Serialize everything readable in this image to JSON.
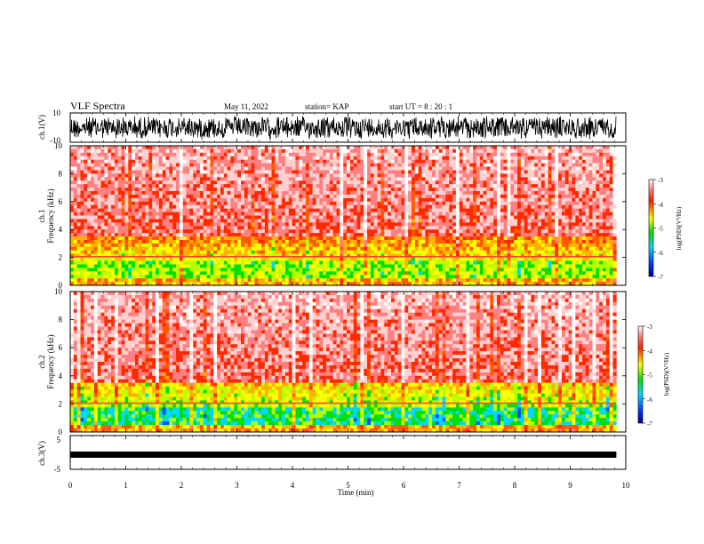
{
  "header": {
    "title": "VLF Spectra",
    "date": "May 11, 2022",
    "station": "station= KAP",
    "start": "start  UT =   8  : 20 : 1"
  },
  "chart_data": [
    {
      "type": "line",
      "name_label": "ch.1(V)",
      "ylim": [
        -10,
        10
      ],
      "yticks": [
        "10",
        "-10"
      ],
      "description": "ch.1 waveform amplitude"
    },
    {
      "type": "heatmap",
      "ylabel_top": "ch.1",
      "ylabel": "Frequency (kHz)",
      "ylim": [
        0,
        10
      ],
      "yticks": [
        "0",
        "2",
        "4",
        "6",
        "8",
        "10"
      ],
      "colorbar": {
        "label": "log(PSD)(V²/Hz)",
        "ticks": [
          "-3",
          "-4",
          "-5",
          "-6",
          "-7"
        ],
        "range": [
          -7,
          -3
        ]
      }
    },
    {
      "type": "heatmap",
      "ylabel_top": "ch.2",
      "ylabel": "Frequency (kHz)",
      "ylim": [
        0,
        10
      ],
      "yticks": [
        "0",
        "2",
        "4",
        "6",
        "8",
        "10"
      ],
      "colorbar": {
        "label": "log(PSD)(V²/Hz)",
        "ticks": [
          "-3",
          "-4",
          "-5",
          "-6",
          "-7"
        ],
        "range": [
          -7,
          -3
        ]
      }
    },
    {
      "type": "line",
      "name_label": "ch.3(V)",
      "ylim": [
        -5,
        5
      ],
      "yticks": [
        "5",
        "-5"
      ]
    }
  ],
  "xaxis": {
    "label": "Time (min)",
    "ticks": [
      "0",
      "1",
      "2",
      "3",
      "4",
      "5",
      "6",
      "7",
      "8",
      "9",
      "10"
    ],
    "xlim": [
      0,
      10
    ],
    "data_end": 9.83
  }
}
